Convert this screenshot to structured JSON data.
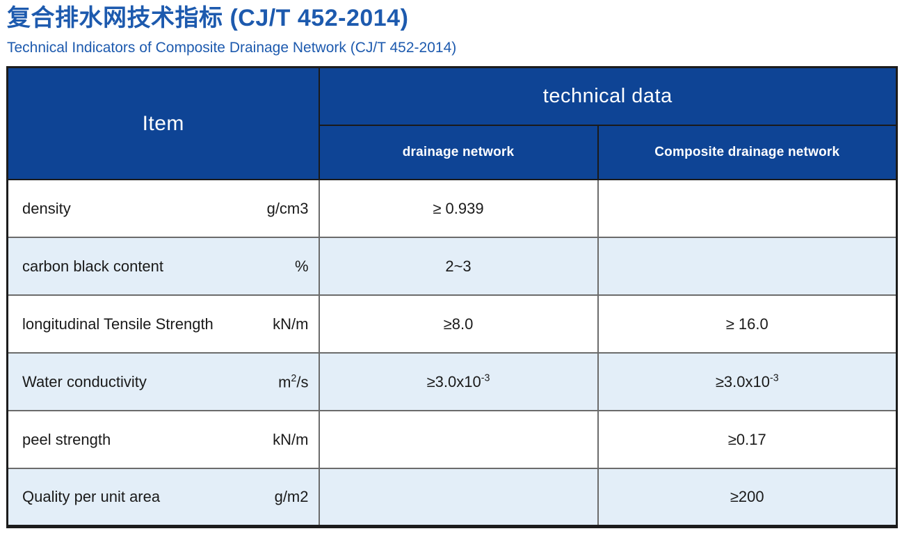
{
  "page": {
    "title": "复合排水网技术指标 (CJ/T 452-2014)",
    "subtitle": "Technical Indicators of Composite Drainage Network (CJ/T 452-2014)"
  },
  "colors": {
    "header_blue": "#0e4495",
    "row_alt_blue": "#e3eef8",
    "title_blue": "#1d5aae",
    "text_dark": "#1a1a1a",
    "border_dark": "#1c1c1c",
    "border_gray": "#6b6b6b",
    "header_text": "#ffffff"
  },
  "table": {
    "header": {
      "item_label": "Item",
      "technical_data_label": "technical data",
      "drainage_label": "drainage network",
      "composite_label": "Composite drainage network"
    },
    "rows": [
      {
        "item": "density",
        "unit": {
          "base": "g/cm3",
          "sup": "",
          "rest": ""
        },
        "drainage": {
          "text": "≥ 0.939",
          "sup": ""
        },
        "composite": {
          "text": "",
          "sup": ""
        },
        "shaded": false
      },
      {
        "item": "carbon black content",
        "unit": {
          "base": "%",
          "sup": "",
          "rest": ""
        },
        "drainage": {
          "text": "2~3",
          "sup": ""
        },
        "composite": {
          "text": "",
          "sup": ""
        },
        "shaded": true
      },
      {
        "item": "longitudinal Tensile Strength",
        "unit": {
          "base": "kN/m",
          "sup": "",
          "rest": ""
        },
        "drainage": {
          "text": "≥8.0",
          "sup": ""
        },
        "composite": {
          "text": "≥ 16.0",
          "sup": ""
        },
        "shaded": false
      },
      {
        "item": "Water conductivity",
        "unit": {
          "base": "m",
          "sup": "2",
          "rest": "/s"
        },
        "drainage": {
          "text": "≥3.0x10",
          "sup": "-3"
        },
        "composite": {
          "text": "≥3.0x10",
          "sup": "-3"
        },
        "shaded": true
      },
      {
        "item": "peel strength",
        "unit": {
          "base": "kN/m",
          "sup": "",
          "rest": ""
        },
        "drainage": {
          "text": "",
          "sup": ""
        },
        "composite": {
          "text": "≥0.17",
          "sup": ""
        },
        "shaded": false
      },
      {
        "item": "Quality per unit area",
        "unit": {
          "base": "g/m2",
          "sup": "",
          "rest": ""
        },
        "drainage": {
          "text": "",
          "sup": ""
        },
        "composite": {
          "text": "≥200",
          "sup": ""
        },
        "shaded": true
      }
    ]
  }
}
